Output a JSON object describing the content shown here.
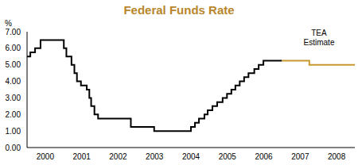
{
  "chart_data": {
    "type": "line",
    "title": "Federal Funds Rate",
    "y_label": "%",
    "annotation": "TEA Estimate",
    "xlim": [
      2000,
      2009
    ],
    "xticks": [
      {
        "value": 2000.5,
        "label": "2000"
      },
      {
        "value": 2001.5,
        "label": "2001"
      },
      {
        "value": 2002.5,
        "label": "2002"
      },
      {
        "value": 2003.5,
        "label": "2003"
      },
      {
        "value": 2004.5,
        "label": "2004"
      },
      {
        "value": 2005.5,
        "label": "2005"
      },
      {
        "value": 2006.5,
        "label": "2006"
      },
      {
        "value": 2007.5,
        "label": "2007"
      },
      {
        "value": 2008.5,
        "label": "2008"
      }
    ],
    "ylim": [
      0,
      7
    ],
    "yticks": [
      {
        "value": 0,
        "label": "0.00"
      },
      {
        "value": 1,
        "label": "1.00"
      },
      {
        "value": 2,
        "label": "2.00"
      },
      {
        "value": 3,
        "label": "3.00"
      },
      {
        "value": 4,
        "label": "4.00"
      },
      {
        "value": 5,
        "label": "5.00"
      },
      {
        "value": 6,
        "label": "6.00"
      },
      {
        "value": 7,
        "label": "7.00"
      }
    ],
    "grid": false,
    "line_style": "step",
    "series": [
      {
        "color": "#000000",
        "x": [
          2000.0,
          2000.09,
          2000.22,
          2000.37,
          2001.01,
          2001.08,
          2001.22,
          2001.3,
          2001.37,
          2001.48,
          2001.64,
          2001.71,
          2001.76,
          2001.85,
          2001.95,
          2002.85,
          2003.49,
          2004.5,
          2004.61,
          2004.72,
          2004.87,
          2004.96,
          2005.09,
          2005.22,
          2005.37,
          2005.49,
          2005.61,
          2005.72,
          2005.84,
          2005.96,
          2006.08,
          2006.24,
          2006.36,
          2006.49,
          2007.0
        ],
        "values": [
          5.5,
          5.75,
          6.0,
          6.5,
          6.0,
          5.5,
          5.0,
          4.5,
          4.0,
          3.75,
          3.5,
          3.0,
          2.5,
          2.0,
          1.75,
          1.25,
          1.0,
          1.25,
          1.5,
          1.75,
          2.0,
          2.25,
          2.5,
          2.75,
          3.0,
          3.25,
          3.5,
          3.75,
          4.0,
          4.25,
          4.5,
          4.75,
          5.0,
          5.25,
          5.25
        ]
      },
      {
        "color": "#c8982e",
        "x": [
          2007.0,
          2007.75,
          2009.0
        ],
        "values": [
          5.25,
          5.0,
          5.0
        ]
      }
    ]
  }
}
